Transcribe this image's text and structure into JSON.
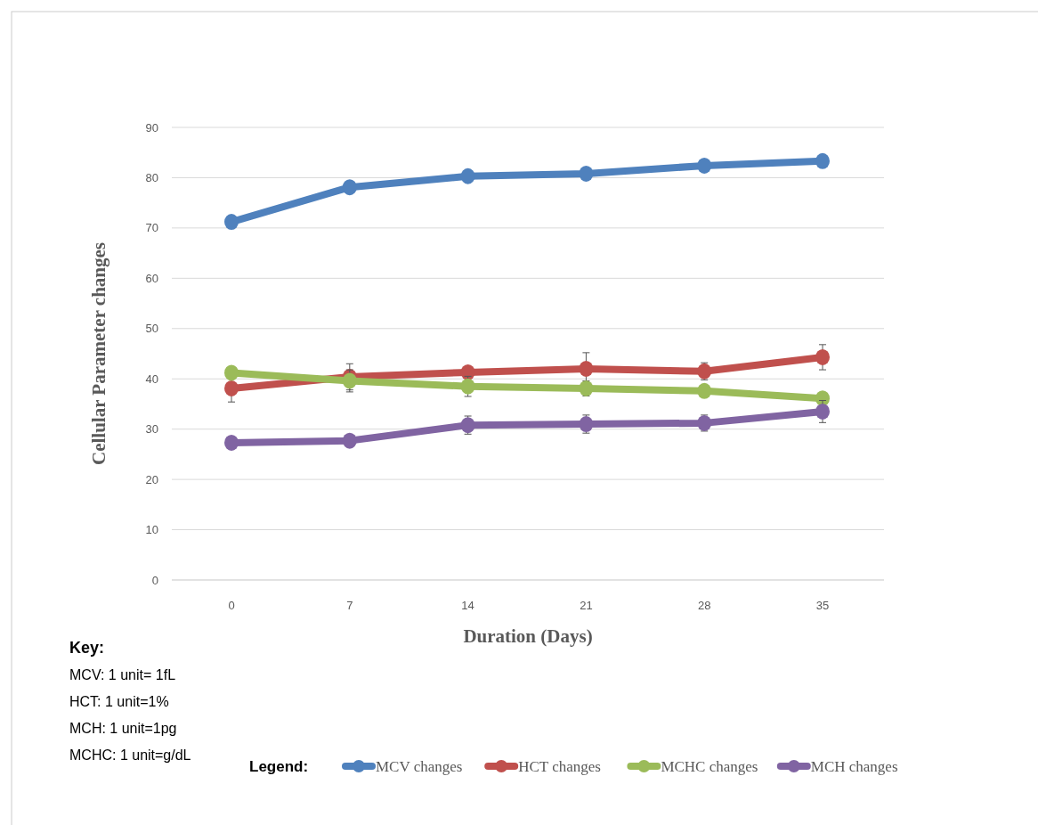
{
  "chart_data": {
    "type": "line",
    "xlabel": "Duration (Days)",
    "ylabel": "Cellular Parameter changes",
    "legend_title": "Legend:",
    "categories": [
      "0",
      "7",
      "14",
      "21",
      "28",
      "35"
    ],
    "series": [
      {
        "name": "MCV changes",
        "color": "#4f81bd",
        "values": [
          71.2,
          78.1,
          80.3,
          80.8,
          82.4,
          83.3
        ]
      },
      {
        "name": "HCT changes",
        "color": "#c0504d",
        "values": [
          38.1,
          40.4,
          41.3,
          42.0,
          41.5,
          44.3
        ],
        "errors": [
          2.7,
          2.6,
          1,
          3.2,
          1.7,
          2.5
        ]
      },
      {
        "name": "MCHC changes",
        "color": "#9bbb59",
        "values": [
          41.2,
          39.6,
          38.5,
          38.1,
          37.6,
          36.1
        ],
        "errors": [
          null,
          2.2,
          2,
          1.5,
          null,
          1
        ]
      },
      {
        "name": "MCH changes",
        "color": "#8064a2",
        "values": [
          27.3,
          27.7,
          30.8,
          31.0,
          31.2,
          33.5
        ],
        "errors": [
          null,
          null,
          1.8,
          1.8,
          1.6,
          2.2
        ]
      }
    ],
    "ylim": [
      0,
      90
    ],
    "yticks": [
      0,
      10,
      20,
      30,
      40,
      50,
      60,
      70,
      80,
      90
    ],
    "grid": "y",
    "legend": "bottom",
    "marker": "circle",
    "line_style": "solid",
    "annotations": [
      "Key:",
      "MCV: 1 unit= 1fL",
      "HCT: 1 unit=1%",
      "MCH: 1 unit=1pg",
      "MCHC: 1 unit=g/dL"
    ]
  }
}
